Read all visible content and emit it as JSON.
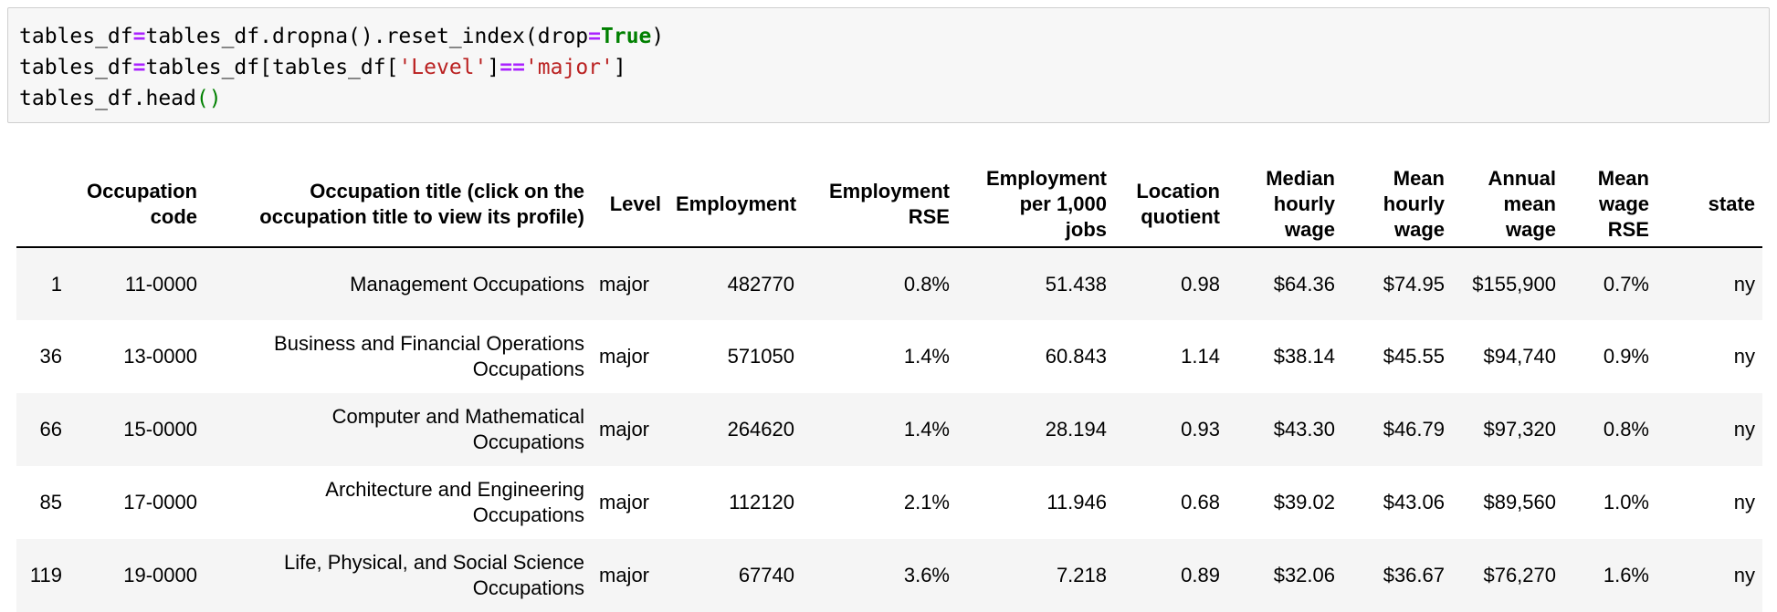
{
  "code_cell": {
    "lines": [
      [
        {
          "t": "tables_df",
          "c": ""
        },
        {
          "t": "=",
          "c": "op"
        },
        {
          "t": "tables_df.dropna().reset_index(drop",
          "c": ""
        },
        {
          "t": "=",
          "c": "op"
        },
        {
          "t": "True",
          "c": "kw"
        },
        {
          "t": ")",
          "c": ""
        }
      ],
      [
        {
          "t": "tables_df",
          "c": ""
        },
        {
          "t": "=",
          "c": "op"
        },
        {
          "t": "tables_df[tables_df[",
          "c": ""
        },
        {
          "t": "'Level'",
          "c": "str"
        },
        {
          "t": "]",
          "c": ""
        },
        {
          "t": "==",
          "c": "op"
        },
        {
          "t": "'major'",
          "c": "str"
        },
        {
          "t": "]",
          "c": ""
        }
      ],
      [
        {
          "t": "tables_df.head",
          "c": ""
        },
        {
          "t": "()",
          "c": "par"
        }
      ]
    ]
  },
  "table": {
    "columns": [
      [
        ""
      ],
      [
        "Occupation",
        "code"
      ],
      [
        "Occupation title (click on the",
        "occupation title to view its profile)"
      ],
      [
        "Level"
      ],
      [
        "Employment"
      ],
      [
        "Employment",
        "RSE"
      ],
      [
        "Employment",
        "per 1,000",
        "jobs"
      ],
      [
        "Location",
        "quotient"
      ],
      [
        "Median",
        "hourly",
        "wage"
      ],
      [
        "Mean",
        "hourly",
        "wage"
      ],
      [
        "Annual",
        "mean",
        "wage"
      ],
      [
        "Mean",
        "wage",
        "RSE"
      ],
      [
        "state"
      ]
    ],
    "rows": [
      {
        "index": "1",
        "code": "11-0000",
        "title": [
          "Management Occupations"
        ],
        "level": "major",
        "employment": "482770",
        "employment_rse": "0.8%",
        "per_1000": "51.438",
        "location_quotient": "0.98",
        "median_hourly": "$64.36",
        "mean_hourly": "$74.95",
        "annual_mean": "$155,900",
        "mean_wage_rse": "0.7%",
        "state": "ny"
      },
      {
        "index": "36",
        "code": "13-0000",
        "title": [
          "Business and Financial Operations",
          "Occupations"
        ],
        "level": "major",
        "employment": "571050",
        "employment_rse": "1.4%",
        "per_1000": "60.843",
        "location_quotient": "1.14",
        "median_hourly": "$38.14",
        "mean_hourly": "$45.55",
        "annual_mean": "$94,740",
        "mean_wage_rse": "0.9%",
        "state": "ny"
      },
      {
        "index": "66",
        "code": "15-0000",
        "title": [
          "Computer and Mathematical",
          "Occupations"
        ],
        "level": "major",
        "employment": "264620",
        "employment_rse": "1.4%",
        "per_1000": "28.194",
        "location_quotient": "0.93",
        "median_hourly": "$43.30",
        "mean_hourly": "$46.79",
        "annual_mean": "$97,320",
        "mean_wage_rse": "0.8%",
        "state": "ny"
      },
      {
        "index": "85",
        "code": "17-0000",
        "title": [
          "Architecture and Engineering",
          "Occupations"
        ],
        "level": "major",
        "employment": "112120",
        "employment_rse": "2.1%",
        "per_1000": "11.946",
        "location_quotient": "0.68",
        "median_hourly": "$39.02",
        "mean_hourly": "$43.06",
        "annual_mean": "$89,560",
        "mean_wage_rse": "1.0%",
        "state": "ny"
      },
      {
        "index": "119",
        "code": "19-0000",
        "title": [
          "Life, Physical, and Social Science",
          "Occupations"
        ],
        "level": "major",
        "employment": "67740",
        "employment_rse": "3.6%",
        "per_1000": "7.218",
        "location_quotient": "0.89",
        "median_hourly": "$32.06",
        "mean_hourly": "$36.67",
        "annual_mean": "$76,270",
        "mean_wage_rse": "1.6%",
        "state": "ny"
      }
    ]
  }
}
